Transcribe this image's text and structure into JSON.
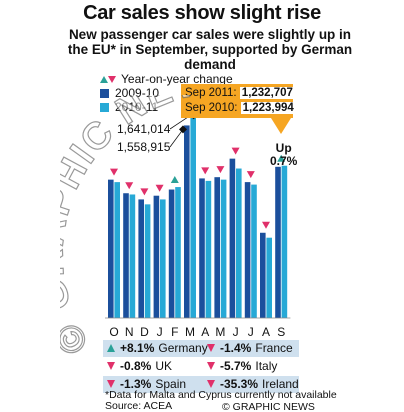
{
  "title": "Car sales show slight rise",
  "subtitle": "New passenger car sales were slightly up in the EU* in September, supported by German demand",
  "legend": {
    "change_label": "Year-on-year change",
    "series1_label": "2009-10",
    "series2_label": "2010-11"
  },
  "callout": {
    "line1_label": "Sep 2011:",
    "line1_value": "1,232,707",
    "line2_label": "Sep 2010:",
    "line2_value": "1,223,994"
  },
  "up_label": {
    "line1": "Up",
    "line2": "0.7%"
  },
  "march_labels": {
    "v2011": "1,641,014",
    "v2010": "1,558,915"
  },
  "chart_data": {
    "type": "bar",
    "categories": [
      "O",
      "N",
      "D",
      "J",
      "F",
      "M",
      "A",
      "M",
      "J",
      "J",
      "A",
      "S"
    ],
    "series": [
      {
        "name": "2009-10",
        "values": [
          1120000,
          1010000,
          960000,
          990000,
          1040000,
          1558915,
          1130000,
          1140000,
          1290000,
          1100000,
          690000,
          1223994
        ]
      },
      {
        "name": "2010-11",
        "values": [
          1100000,
          1000000,
          920000,
          960000,
          1060000,
          1641014,
          1110000,
          1120000,
          1210000,
          1080000,
          650000,
          1232707
        ]
      }
    ],
    "yoy_direction": [
      "down",
      "down",
      "down",
      "down",
      "up",
      "up",
      "down",
      "down",
      "down",
      "down",
      "down",
      "up"
    ],
    "ylim": [
      0,
      1700000
    ],
    "colors": {
      "series1": "#1b4f9c",
      "series2": "#27a9d6",
      "up": "#2aa198",
      "down": "#e0306a"
    },
    "grid": false
  },
  "changes": [
    {
      "dir": "up",
      "value": "+8.1%",
      "country": "Germany"
    },
    {
      "dir": "down",
      "value": "-1.4%",
      "country": "France"
    },
    {
      "dir": "down",
      "value": "-0.8%",
      "country": "UK"
    },
    {
      "dir": "down",
      "value": "-5.7%",
      "country": "Italy"
    },
    {
      "dir": "down",
      "value": "-1.3%",
      "country": "Spain"
    },
    {
      "dir": "down",
      "value": "-35.3%",
      "country": "Ireland"
    }
  ],
  "footnote": "*Data for Malta and Cyprus currently not available",
  "source": "Source: ACEA",
  "credit": "© GRAPHIC NEWS",
  "watermark": "© GRAPHIC NEWS"
}
